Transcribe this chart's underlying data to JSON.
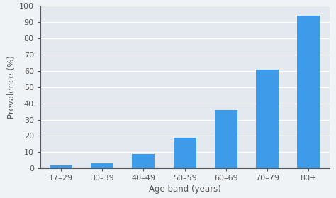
{
  "categories": [
    "17–29",
    "30–39",
    "40–49",
    "50–59",
    "60–69",
    "70–79",
    "80+"
  ],
  "values": [
    2,
    3,
    9,
    19,
    36,
    61,
    94
  ],
  "bar_color": "#3d9be9",
  "background_color": "#f0f3f6",
  "plot_bg_color": "#e4e9ef",
  "grid_color": "#ffffff",
  "spine_color": "#555555",
  "ylabel": "Prevalence (%)",
  "xlabel": "Age band (years)",
  "ylim": [
    0,
    100
  ],
  "yticks": [
    0,
    10,
    20,
    30,
    40,
    50,
    60,
    70,
    80,
    90,
    100
  ],
  "bar_width": 0.55,
  "ylabel_fontsize": 8.5,
  "xlabel_fontsize": 8.5,
  "tick_fontsize": 8.0,
  "tick_color": "#555555"
}
